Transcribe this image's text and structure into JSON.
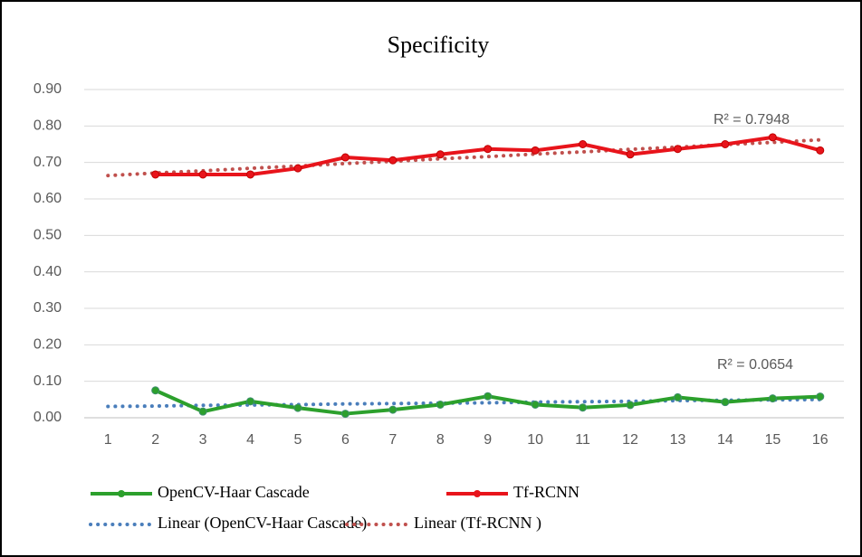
{
  "chart_data": {
    "type": "line",
    "title": "Specificity",
    "categories": [
      "1",
      "2",
      "3",
      "4",
      "5",
      "6",
      "7",
      "8",
      "9",
      "10",
      "11",
      "12",
      "13",
      "14",
      "15",
      "16"
    ],
    "series": [
      {
        "name": "OpenCV-Haar Cascade",
        "color": "#2ca02c",
        "style": "solid",
        "marker": true,
        "values": [
          null,
          0.075,
          0.017,
          0.045,
          0.027,
          0.011,
          0.022,
          0.036,
          0.059,
          0.036,
          0.028,
          0.035,
          0.056,
          0.043,
          0.053,
          0.058
        ]
      },
      {
        "name": "Tf-RCNN",
        "color": "#e8141b",
        "style": "solid",
        "marker": true,
        "values": [
          null,
          0.667,
          0.667,
          0.667,
          0.684,
          0.714,
          0.706,
          0.722,
          0.737,
          0.733,
          0.75,
          0.722,
          0.737,
          0.75,
          0.769,
          0.733
        ]
      },
      {
        "name": "Linear (OpenCV-Haar Cascade)",
        "color": "#4a7ebb",
        "style": "dotted",
        "marker": false,
        "values": [
          0.031,
          0.032,
          0.034,
          0.035,
          0.036,
          0.038,
          0.039,
          0.04,
          0.041,
          0.043,
          0.044,
          0.045,
          0.047,
          0.048,
          0.049,
          0.05
        ]
      },
      {
        "name": "Linear (Tf-RCNN )",
        "color": "#c0504d",
        "style": "dotted",
        "marker": false,
        "values": [
          0.664,
          0.671,
          0.677,
          0.684,
          0.69,
          0.697,
          0.703,
          0.71,
          0.716,
          0.723,
          0.729,
          0.736,
          0.742,
          0.749,
          0.755,
          0.762
        ]
      }
    ],
    "annotations": [
      "R² = 0.7948",
      "R² = 0.0654"
    ],
    "ylim": [
      0,
      0.9
    ],
    "yticks": [
      {
        "value": 0,
        "label": "0.00"
      },
      {
        "value": 0.1,
        "label": "0.10"
      },
      {
        "value": 0.2,
        "label": "0.20"
      },
      {
        "value": 0.3,
        "label": "0.30"
      },
      {
        "value": 0.4,
        "label": "0.40"
      },
      {
        "value": 0.5,
        "label": "0.50"
      },
      {
        "value": 0.6,
        "label": "0.60"
      },
      {
        "value": 0.7,
        "label": "0.70"
      },
      {
        "value": 0.8,
        "label": "0.80"
      },
      {
        "value": 0.9,
        "label": "0.90"
      }
    ],
    "grid": true,
    "legend": "bottom"
  }
}
